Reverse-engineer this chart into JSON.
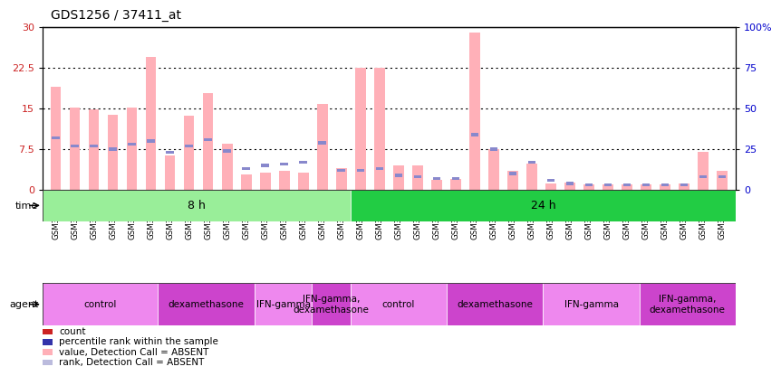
{
  "title": "GDS1256 / 37411_at",
  "samples": [
    "GSM31694",
    "GSM31695",
    "GSM31696",
    "GSM31697",
    "GSM31698",
    "GSM31699",
    "GSM31700",
    "GSM31701",
    "GSM31702",
    "GSM31703",
    "GSM31704",
    "GSM31705",
    "GSM31706",
    "GSM31707",
    "GSM31708",
    "GSM31709",
    "GSM31674",
    "GSM31678",
    "GSM31682",
    "GSM31686",
    "GSM31690",
    "GSM31675",
    "GSM31679",
    "GSM31683",
    "GSM31687",
    "GSM31691",
    "GSM31676",
    "GSM31680",
    "GSM31684",
    "GSM31688",
    "GSM31692",
    "GSM31677",
    "GSM31681",
    "GSM31685",
    "GSM31689",
    "GSM31693"
  ],
  "pink_values": [
    19.0,
    15.2,
    14.8,
    13.8,
    15.2,
    24.5,
    6.3,
    13.7,
    17.8,
    8.5,
    2.8,
    3.2,
    3.5,
    3.2,
    15.8,
    4.0,
    22.5,
    22.5,
    4.5,
    4.5,
    1.8,
    2.0,
    29.0,
    7.5,
    3.5,
    4.8,
    1.2,
    1.3,
    1.0,
    1.0,
    1.0,
    1.0,
    1.0,
    1.2,
    7.0,
    3.5
  ],
  "blue_values_pct": [
    32,
    27,
    27,
    25,
    28,
    30,
    23,
    27,
    31,
    24,
    13,
    15,
    16,
    17,
    29,
    12,
    12,
    13,
    9,
    8,
    7,
    7,
    34,
    25,
    10,
    17,
    6,
    4,
    3,
    3,
    3,
    3,
    3,
    3,
    8,
    8
  ],
  "ylim_left": [
    0,
    30
  ],
  "ylim_right": [
    0,
    100
  ],
  "yticks_left": [
    0,
    7.5,
    15,
    22.5,
    30
  ],
  "yticks_right": [
    0,
    25,
    50,
    75,
    100
  ],
  "ytick_labels_right": [
    "0",
    "25",
    "50",
    "75",
    "100%"
  ],
  "pink_color": "#FFB0B8",
  "blue_color": "#8888CC",
  "bar_width": 0.55,
  "gridline_color": "black",
  "time_groups": [
    {
      "label": "8 h",
      "start": 0,
      "end": 16,
      "color": "#99EE99"
    },
    {
      "label": "24 h",
      "start": 16,
      "end": 36,
      "color": "#22CC44"
    }
  ],
  "agent_groups": [
    {
      "label": "control",
      "start": 0,
      "end": 6,
      "color": "#EE88EE"
    },
    {
      "label": "dexamethasone",
      "start": 6,
      "end": 11,
      "color": "#CC44CC"
    },
    {
      "label": "IFN-gamma",
      "start": 11,
      "end": 14,
      "color": "#EE88EE"
    },
    {
      "label": "IFN-gamma,\ndexamethasone",
      "start": 14,
      "end": 16,
      "color": "#CC44CC"
    },
    {
      "label": "control",
      "start": 16,
      "end": 21,
      "color": "#EE88EE"
    },
    {
      "label": "dexamethasone",
      "start": 21,
      "end": 26,
      "color": "#CC44CC"
    },
    {
      "label": "IFN-gamma",
      "start": 26,
      "end": 31,
      "color": "#EE88EE"
    },
    {
      "label": "IFN-gamma,\ndexamethasone",
      "start": 31,
      "end": 36,
      "color": "#CC44CC"
    }
  ],
  "legend_items": [
    {
      "label": "count",
      "color": "#CC2222"
    },
    {
      "label": "percentile rank within the sample",
      "color": "#3333AA"
    },
    {
      "label": "value, Detection Call = ABSENT",
      "color": "#FFB0B8"
    },
    {
      "label": "rank, Detection Call = ABSENT",
      "color": "#BBBBDD"
    }
  ]
}
